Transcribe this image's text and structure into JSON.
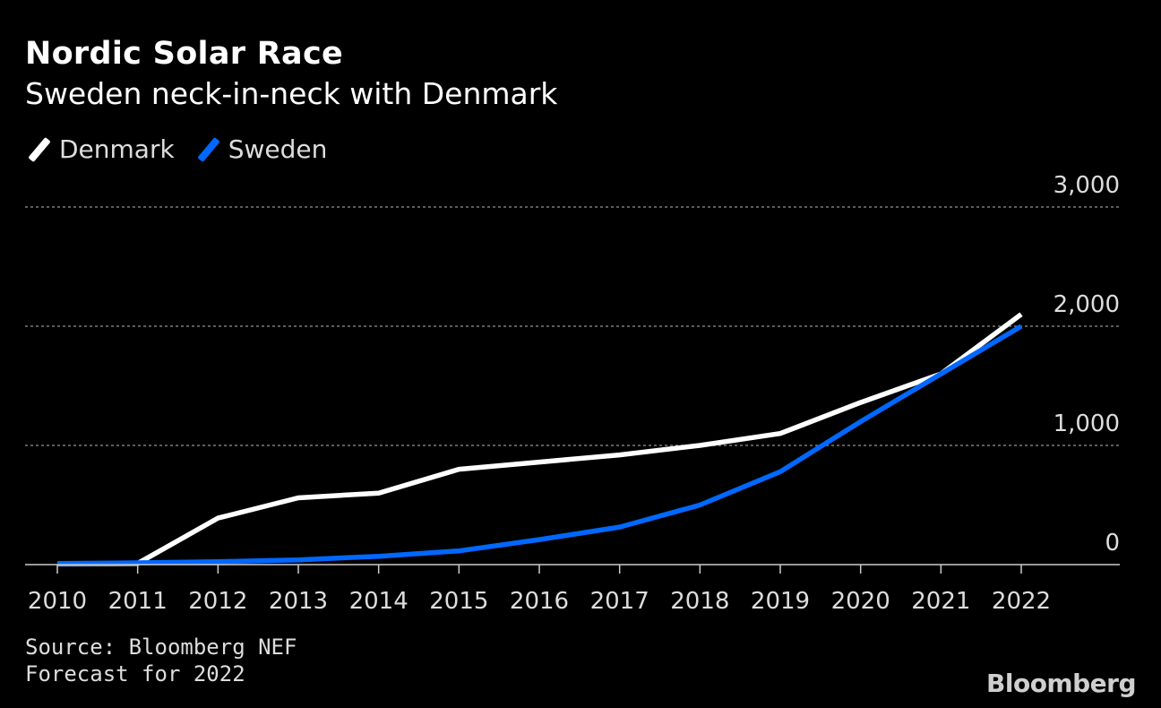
{
  "colors": {
    "background": "#000000",
    "denmark": "#ffffff",
    "sweden": "#0068ff",
    "grid": "#7a7a7a",
    "text": "#dddddd"
  },
  "header": {
    "title": "Nordic Solar Race",
    "subtitle": "Sweden neck-in-neck with Denmark"
  },
  "legend": {
    "items": [
      {
        "label": "Denmark",
        "color": "#ffffff"
      },
      {
        "label": "Sweden",
        "color": "#0068ff"
      }
    ]
  },
  "footer": {
    "source": "Source: Bloomberg NEF",
    "note": "Forecast for 2022",
    "logo": "Bloomberg"
  },
  "chart_data": {
    "type": "line",
    "x": [
      2010,
      2011,
      2012,
      2013,
      2014,
      2015,
      2016,
      2017,
      2018,
      2019,
      2020,
      2021,
      2022
    ],
    "x_tick_labels": [
      "2010",
      "2011",
      "2012",
      "2013",
      "2014",
      "2015",
      "2016",
      "2017",
      "2018",
      "2019",
      "2020",
      "2021",
      "2022"
    ],
    "y_ticks": [
      0,
      1000,
      2000,
      3000
    ],
    "y_tick_labels": [
      "0",
      "1,000",
      "2,000",
      "3,000"
    ],
    "ylim": [
      0,
      3000
    ],
    "grid": true,
    "legend_position": "top-left",
    "series": [
      {
        "name": "Denmark",
        "color": "#ffffff",
        "values": [
          5,
          10,
          390,
          560,
          600,
          800,
          860,
          920,
          1000,
          1100,
          1360,
          1600,
          2100
        ]
      },
      {
        "name": "Sweden",
        "color": "#0068ff",
        "values": [
          10,
          15,
          25,
          40,
          70,
          115,
          210,
          315,
          500,
          780,
          1200,
          1600,
          2000
        ]
      }
    ]
  }
}
